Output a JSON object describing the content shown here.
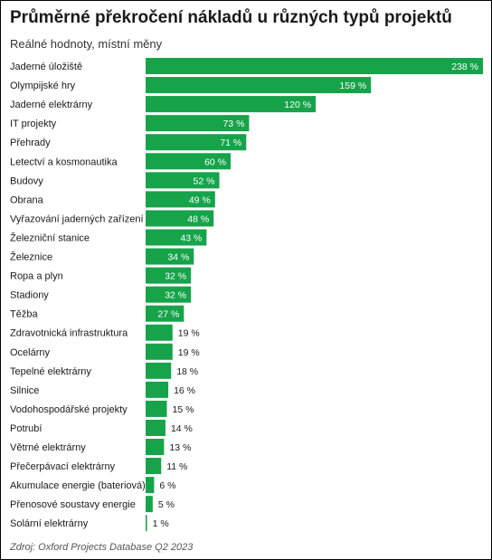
{
  "header": {
    "title": "Průměrné překročení nákladů u různých typů projektů",
    "subtitle": "Reálné hodnoty, místní měny"
  },
  "footer": {
    "source": "Zdroj: Oxford Projects Database Q2 2023"
  },
  "colors": {
    "bar": "#16a34a",
    "label_inside": "#ffffff",
    "label_outside": "#1a1a1a"
  },
  "chart_data": {
    "type": "bar",
    "orientation": "horizontal",
    "title": "Průměrné překročení nákladů u různých typů projektů",
    "subtitle": "Reálné hodnoty, místní měny",
    "value_suffix": " %",
    "xlim": [
      0,
      238
    ],
    "grid": false,
    "categories": [
      "Jaderné úložiště",
      "Olympijské hry",
      "Jaderné elektrárny",
      "IT projekty",
      "Přehrady",
      "Letectví a kosmonautika",
      "Budovy",
      "Obrana",
      "Vyřazování jaderných zařízení",
      "Železniční stanice",
      "Železnice",
      "Ropa a plyn",
      "Stadiony",
      "Těžba",
      "Zdravotnická infrastruktura",
      "Ocelárny",
      "Tepelné elektrárny",
      "Silnice",
      "Vodohospodářské projekty",
      "Potrubí",
      "Větrné elektrárny",
      "Přečerpávací elektrárny",
      "Akumulace energie (bateriová)",
      "Přenosové soustavy energie",
      "Solární elektrárny"
    ],
    "values": [
      238,
      159,
      120,
      73,
      71,
      60,
      52,
      49,
      48,
      43,
      34,
      32,
      32,
      27,
      19,
      19,
      18,
      16,
      15,
      14,
      13,
      11,
      6,
      5,
      1
    ],
    "labels_inside_min_value": 20
  }
}
